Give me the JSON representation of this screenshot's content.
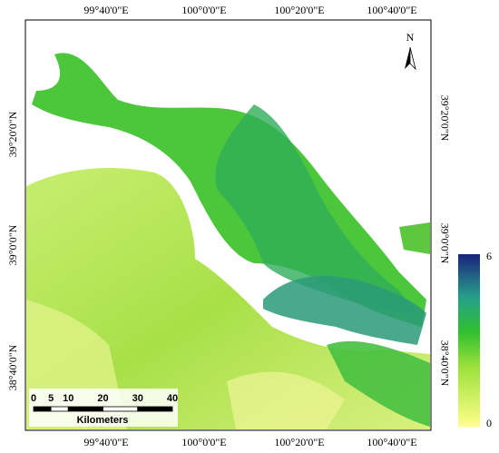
{
  "map": {
    "top_labels": [
      "99°40'0\"E",
      "100°0'0\"E",
      "100°20'0\"E",
      "100°40'0\"E"
    ],
    "bottom_labels": [
      "99°40'0\"E",
      "100°0'0\"E",
      "100°20'0\"E",
      "100°40'0\"E"
    ],
    "left_labels": [
      "39°20'0\"N",
      "39°0'0\"N",
      "38°40'0\"N"
    ],
    "right_labels": [
      "39°20'0\"N",
      "39°0'0\"N",
      "38°40'0\"N"
    ],
    "north_arrow": "N",
    "scale_bar": {
      "ticks": [
        0,
        5,
        10,
        20,
        30,
        40
      ],
      "unit": "Kilometers"
    },
    "legend": {
      "max": 6,
      "min": 0
    }
  }
}
